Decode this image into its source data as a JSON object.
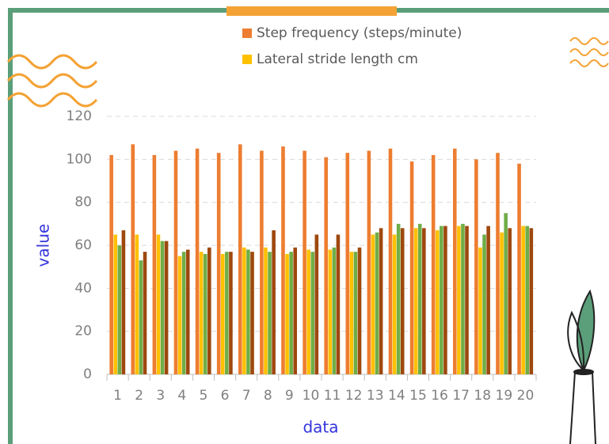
{
  "chart_data": {
    "type": "bar",
    "categories": [
      "1",
      "2",
      "3",
      "4",
      "5",
      "6",
      "7",
      "8",
      "9",
      "10",
      "11",
      "12",
      "13",
      "14",
      "15",
      "16",
      "17",
      "18",
      "19",
      "20"
    ],
    "series": [
      {
        "name": "Step frequency (steps/minute)",
        "color": "#ed7d31",
        "values": [
          102,
          107,
          102,
          104,
          105,
          103,
          107,
          104,
          106,
          104,
          101,
          103,
          104,
          105,
          99,
          102,
          105,
          100,
          103,
          98
        ]
      },
      {
        "name": "Lateral stride length cm",
        "color": "#ffc000",
        "values": [
          65,
          65,
          65,
          55,
          57,
          56,
          59,
          59,
          56,
          58,
          58,
          57,
          65,
          65,
          68,
          67,
          69,
          59,
          66,
          69
        ]
      },
      {
        "color": "#70ad47",
        "values": [
          60,
          53,
          62,
          57,
          56,
          57,
          58,
          57,
          57,
          57,
          59,
          57,
          66,
          70,
          70,
          69,
          70,
          65,
          75,
          69
        ]
      },
      {
        "color": "#9e480e",
        "values": [
          67,
          57,
          62,
          58,
          59,
          57,
          57,
          67,
          59,
          65,
          65,
          59,
          68,
          68,
          68,
          69,
          69,
          69,
          68,
          68
        ]
      }
    ],
    "x_label": "data",
    "y_label": "value",
    "ylim": [
      0,
      120
    ],
    "yticks": [
      0,
      20,
      40,
      60,
      80,
      100,
      120
    ],
    "grid": true
  }
}
